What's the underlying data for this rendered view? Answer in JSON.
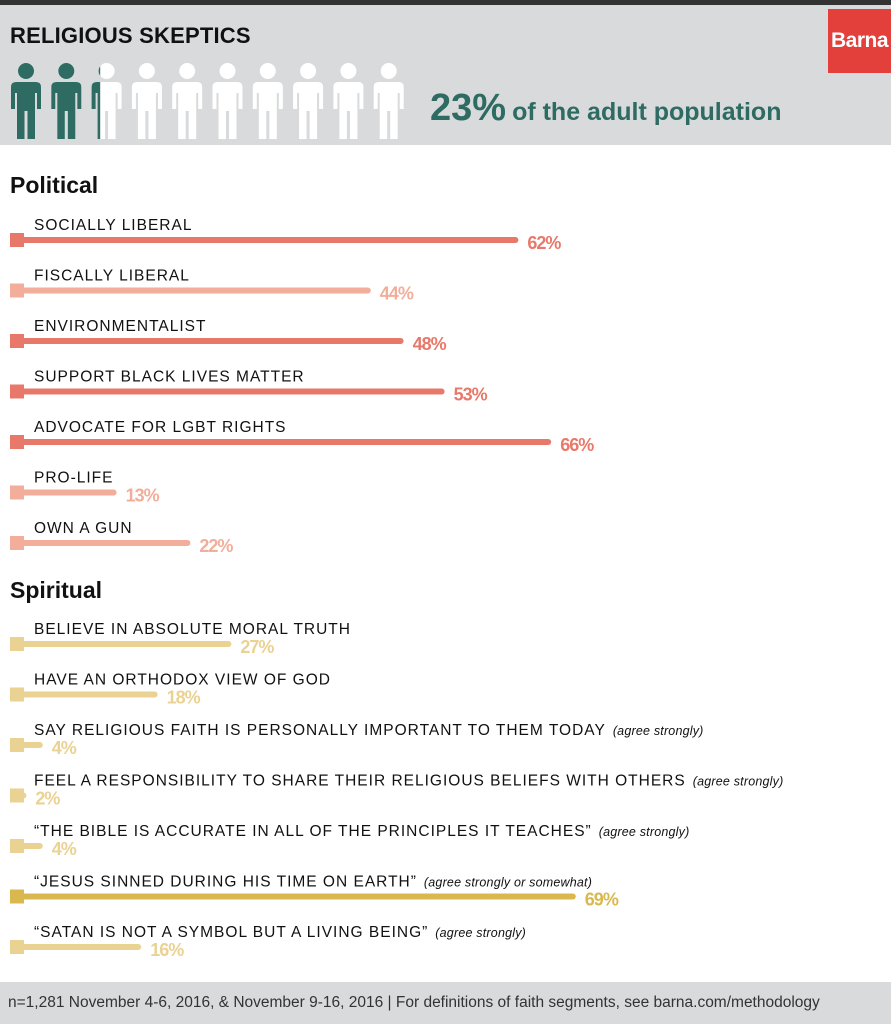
{
  "title": "RELIGIOUS SKEPTICS",
  "logo": "Barna",
  "population": {
    "percent": "23%",
    "text": "of the adult population",
    "fraction": 0.23,
    "icon": "person-icon",
    "icon_count": 10,
    "filled_color": "#2d6b63",
    "empty_color": "#ffffff"
  },
  "footnote": "n=1,281 November 4-6, 2016, & November 9-16, 2016 | For definitions of faith segments, see barna.com/methodology",
  "colors": {
    "political_strong": "#e8796a",
    "political_light": "#f2ae9a",
    "spiritual_strong": "#d9b850",
    "spiritual_light": "#ead292"
  },
  "chart_data": [
    {
      "type": "bar",
      "title": "Political",
      "orientation": "horizontal",
      "ylim": [
        0,
        100
      ],
      "categories": [
        "SOCIALLY LIBERAL",
        "FISCALLY LIBERAL",
        "ENVIRONMENTALIST",
        "SUPPORT BLACK LIVES MATTER",
        "ADVOCATE FOR LGBT RIGHTS",
        "PRO-LIFE",
        "OWN A GUN"
      ],
      "qualifiers": [
        "",
        "",
        "",
        "",
        "",
        "",
        ""
      ],
      "values": [
        62,
        44,
        48,
        53,
        66,
        13,
        22
      ],
      "value_labels": [
        "62%",
        "44%",
        "48%",
        "53%",
        "66%",
        "13%",
        "22%"
      ]
    },
    {
      "type": "bar",
      "title": "Spiritual",
      "orientation": "horizontal",
      "ylim": [
        0,
        100
      ],
      "categories": [
        "BELIEVE IN ABSOLUTE MORAL TRUTH",
        "HAVE AN ORTHODOX VIEW OF GOD",
        "SAY RELIGIOUS FAITH IS PERSONALLY IMPORTANT TO THEM TODAY",
        "FEEL A RESPONSIBILITY TO SHARE THEIR RELIGIOUS BELIEFS WITH OTHERS",
        "“THE BIBLE IS ACCURATE IN ALL OF THE PRINCIPLES IT TEACHES”",
        "“JESUS SINNED DURING HIS TIME ON EARTH”",
        "“SATAN IS NOT A SYMBOL BUT A LIVING BEING”"
      ],
      "qualifiers": [
        "",
        "",
        "(agree strongly)",
        "(agree strongly)",
        "(agree strongly)",
        "(agree strongly or somewhat)",
        "(agree strongly)"
      ],
      "values": [
        27,
        18,
        4,
        2,
        4,
        69,
        16
      ],
      "value_labels": [
        "27%",
        "18%",
        "4%",
        "2%",
        "4%",
        "69%",
        "16%"
      ]
    }
  ]
}
